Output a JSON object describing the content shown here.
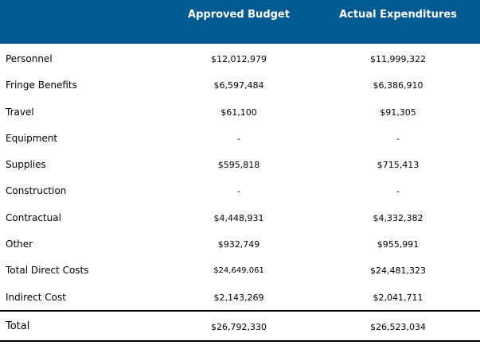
{
  "header": {
    "col_label": "",
    "col_budget": "Approved Budget",
    "col_actual": "Actual Expenditures"
  },
  "rows": [
    {
      "label": "Personnel",
      "budget": "$12,012,979",
      "actual": "$11,999,322"
    },
    {
      "label": "Fringe Benefits",
      "budget": "$6,597,484",
      "actual": "$6,386,910"
    },
    {
      "label": "Travel",
      "budget": "$61,100",
      "actual": "$91,305"
    },
    {
      "label": "Equipment",
      "budget": "-",
      "actual": "-"
    },
    {
      "label": "Supplies",
      "budget": "$595,818",
      "actual": "$715,413"
    },
    {
      "label": "Construction",
      "budget": "-",
      "actual": "-"
    },
    {
      "label": "Contractual",
      "budget": "$4,448,931",
      "actual": "$4,332,382"
    },
    {
      "label": "Other",
      "budget": "$932,749",
      "actual": "$955,991"
    },
    {
      "label": "Total Direct Costs",
      "budget": "$24,649,061",
      "actual": "$24,481,323"
    },
    {
      "label": "Indirect Cost",
      "budget": "$2,143,269",
      "actual": "$2,041,711"
    }
  ],
  "total": {
    "label": "Total",
    "budget": "$26,792,330",
    "actual": "$26,523,034"
  },
  "colors": {
    "header_bg": "#005a92",
    "header_text": "#ffffff",
    "rule": "#000000"
  }
}
